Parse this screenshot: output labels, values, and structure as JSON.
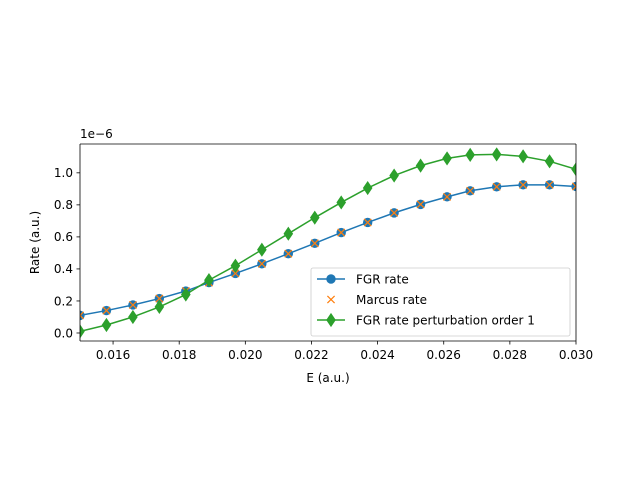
{
  "chart_data": {
    "type": "line",
    "title": "",
    "xlabel": "E (a.u.)",
    "ylabel": "Rate (a.u.)",
    "y_scale_label": "1e−6",
    "xlim": [
      0.015,
      0.03
    ],
    "ylim": [
      -0.05,
      1.18
    ],
    "x_ticks": [
      0.016,
      0.018,
      0.02,
      0.022,
      0.024,
      0.026,
      0.028,
      0.03
    ],
    "x_tick_labels": [
      "0.016",
      "0.018",
      "0.020",
      "0.022",
      "0.024",
      "0.026",
      "0.028",
      "0.030"
    ],
    "y_ticks": [
      0.0,
      0.2,
      0.4,
      0.6,
      0.8,
      1.0
    ],
    "y_tick_labels": [
      "0.0",
      "0.2",
      "0.4",
      "0.6",
      "0.8",
      "1.0"
    ],
    "grid": false,
    "legend_position": "lower-right",
    "x": [
      0.015,
      0.0158,
      0.0166,
      0.0174,
      0.0182,
      0.0189,
      0.0197,
      0.0205,
      0.0213,
      0.0221,
      0.0229,
      0.0237,
      0.0245,
      0.0253,
      0.0261,
      0.0268,
      0.0276,
      0.0284,
      0.0292,
      0.03
    ],
    "series": [
      {
        "name": "FGR rate",
        "color": "#1f77b4",
        "marker": "circle",
        "line": true,
        "values": [
          0.11,
          0.14,
          0.175,
          0.215,
          0.262,
          0.315,
          0.372,
          0.432,
          0.495,
          0.56,
          0.627,
          0.69,
          0.75,
          0.803,
          0.85,
          0.888,
          0.913,
          0.925,
          0.925,
          0.915
        ]
      },
      {
        "name": "Marcus rate",
        "color": "#ff7f0e",
        "marker": "x",
        "line": false,
        "values": [
          0.11,
          0.14,
          0.175,
          0.215,
          0.262,
          0.315,
          0.372,
          0.432,
          0.495,
          0.56,
          0.627,
          0.69,
          0.75,
          0.803,
          0.85,
          0.888,
          0.913,
          0.925,
          0.925,
          0.915
        ]
      },
      {
        "name": "FGR rate perturbation order 1",
        "color": "#2ca02c",
        "marker": "diamond",
        "line": true,
        "values": [
          0.01,
          0.05,
          0.1,
          0.163,
          0.24,
          0.33,
          0.42,
          0.52,
          0.62,
          0.72,
          0.815,
          0.905,
          0.983,
          1.045,
          1.09,
          1.112,
          1.115,
          1.103,
          1.072,
          1.022
        ]
      }
    ]
  }
}
